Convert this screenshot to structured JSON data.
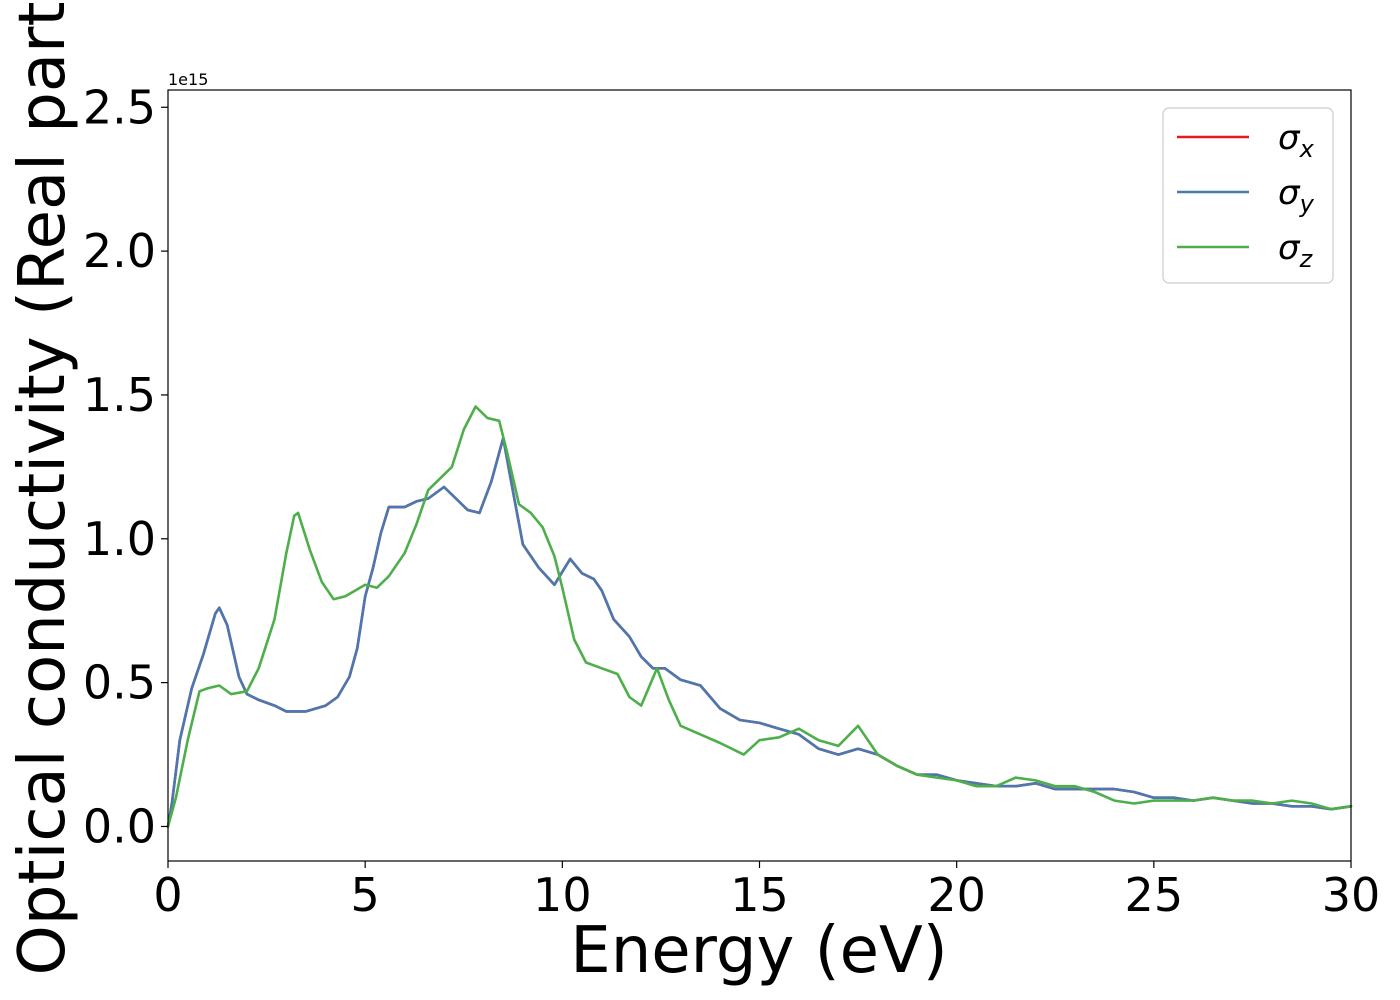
{
  "chart_data": {
    "type": "line",
    "xlabel": "Energy (eV)",
    "ylabel": "Optical conductivity (Real part)",
    "y_offset_label": "1e15",
    "xlim": [
      0,
      30
    ],
    "ylim": [
      -0.12,
      2.56
    ],
    "x_ticks": [
      0,
      5,
      10,
      15,
      20,
      25,
      30
    ],
    "x_tick_labels": [
      "0",
      "5",
      "10",
      "15",
      "20",
      "25",
      "30"
    ],
    "y_ticks": [
      0.0,
      0.5,
      1.0,
      1.5,
      2.0,
      2.5
    ],
    "y_tick_labels": [
      "0.0",
      "0.5",
      "1.0",
      "1.5",
      "2.0",
      "2.5"
    ],
    "grid": false,
    "legend_position": "top-right",
    "series": [
      {
        "name": "σ",
        "subscript": "x",
        "color": "#e41a1c",
        "points": [
          [
            0,
            0
          ],
          [
            0.1,
            0.08
          ],
          [
            0.3,
            0.3
          ],
          [
            0.6,
            0.48
          ],
          [
            0.9,
            0.6
          ],
          [
            1.2,
            0.74
          ],
          [
            1.3,
            0.76
          ],
          [
            1.5,
            0.7
          ],
          [
            1.8,
            0.52
          ],
          [
            2.0,
            0.46
          ],
          [
            2.3,
            0.44
          ],
          [
            2.7,
            0.42
          ],
          [
            3.0,
            0.4
          ],
          [
            3.5,
            0.4
          ],
          [
            4.0,
            0.42
          ],
          [
            4.3,
            0.45
          ],
          [
            4.6,
            0.52
          ],
          [
            4.8,
            0.62
          ],
          [
            5.0,
            0.8
          ],
          [
            5.2,
            0.9
          ],
          [
            5.4,
            1.02
          ],
          [
            5.6,
            1.11
          ],
          [
            6.0,
            1.11
          ],
          [
            6.3,
            1.13
          ],
          [
            6.6,
            1.14
          ],
          [
            7.0,
            1.18
          ],
          [
            7.3,
            1.14
          ],
          [
            7.6,
            1.1
          ],
          [
            7.9,
            1.09
          ],
          [
            8.2,
            1.2
          ],
          [
            8.5,
            1.35
          ],
          [
            8.7,
            1.2
          ],
          [
            9.0,
            0.98
          ],
          [
            9.4,
            0.9
          ],
          [
            9.8,
            0.84
          ],
          [
            10.2,
            0.93
          ],
          [
            10.5,
            0.88
          ],
          [
            10.8,
            0.86
          ],
          [
            11.0,
            0.82
          ],
          [
            11.3,
            0.72
          ],
          [
            11.7,
            0.66
          ],
          [
            12.0,
            0.59
          ],
          [
            12.3,
            0.55
          ],
          [
            12.6,
            0.55
          ],
          [
            13.0,
            0.51
          ],
          [
            13.5,
            0.49
          ],
          [
            14.0,
            0.41
          ],
          [
            14.5,
            0.37
          ],
          [
            15.0,
            0.36
          ],
          [
            15.5,
            0.34
          ],
          [
            16.0,
            0.32
          ],
          [
            16.5,
            0.27
          ],
          [
            17.0,
            0.25
          ],
          [
            17.5,
            0.27
          ],
          [
            18.0,
            0.25
          ],
          [
            18.5,
            0.21
          ],
          [
            19.0,
            0.18
          ],
          [
            19.5,
            0.18
          ],
          [
            20.0,
            0.16
          ],
          [
            20.5,
            0.15
          ],
          [
            21.0,
            0.14
          ],
          [
            21.5,
            0.14
          ],
          [
            22.0,
            0.15
          ],
          [
            22.5,
            0.13
          ],
          [
            23.0,
            0.13
          ],
          [
            24.0,
            0.13
          ],
          [
            24.5,
            0.12
          ],
          [
            25.0,
            0.1
          ],
          [
            25.5,
            0.1
          ],
          [
            26.0,
            0.09
          ],
          [
            26.5,
            0.1
          ],
          [
            27.0,
            0.09
          ],
          [
            27.5,
            0.08
          ],
          [
            28.0,
            0.08
          ],
          [
            28.5,
            0.07
          ],
          [
            29.0,
            0.07
          ],
          [
            29.5,
            0.06
          ],
          [
            30.0,
            0.07
          ]
        ]
      },
      {
        "name": "σ",
        "subscript": "y",
        "color": "#4a78b0",
        "points": [
          [
            0,
            0
          ],
          [
            0.1,
            0.08
          ],
          [
            0.3,
            0.3
          ],
          [
            0.6,
            0.48
          ],
          [
            0.9,
            0.6
          ],
          [
            1.2,
            0.74
          ],
          [
            1.3,
            0.76
          ],
          [
            1.5,
            0.7
          ],
          [
            1.8,
            0.52
          ],
          [
            2.0,
            0.46
          ],
          [
            2.3,
            0.44
          ],
          [
            2.7,
            0.42
          ],
          [
            3.0,
            0.4
          ],
          [
            3.5,
            0.4
          ],
          [
            4.0,
            0.42
          ],
          [
            4.3,
            0.45
          ],
          [
            4.6,
            0.52
          ],
          [
            4.8,
            0.62
          ],
          [
            5.0,
            0.8
          ],
          [
            5.2,
            0.9
          ],
          [
            5.4,
            1.02
          ],
          [
            5.6,
            1.11
          ],
          [
            6.0,
            1.11
          ],
          [
            6.3,
            1.13
          ],
          [
            6.6,
            1.14
          ],
          [
            7.0,
            1.18
          ],
          [
            7.3,
            1.14
          ],
          [
            7.6,
            1.1
          ],
          [
            7.9,
            1.09
          ],
          [
            8.2,
            1.2
          ],
          [
            8.5,
            1.35
          ],
          [
            8.7,
            1.2
          ],
          [
            9.0,
            0.98
          ],
          [
            9.4,
            0.9
          ],
          [
            9.8,
            0.84
          ],
          [
            10.2,
            0.93
          ],
          [
            10.5,
            0.88
          ],
          [
            10.8,
            0.86
          ],
          [
            11.0,
            0.82
          ],
          [
            11.3,
            0.72
          ],
          [
            11.7,
            0.66
          ],
          [
            12.0,
            0.59
          ],
          [
            12.3,
            0.55
          ],
          [
            12.6,
            0.55
          ],
          [
            13.0,
            0.51
          ],
          [
            13.5,
            0.49
          ],
          [
            14.0,
            0.41
          ],
          [
            14.5,
            0.37
          ],
          [
            15.0,
            0.36
          ],
          [
            15.5,
            0.34
          ],
          [
            16.0,
            0.32
          ],
          [
            16.5,
            0.27
          ],
          [
            17.0,
            0.25
          ],
          [
            17.5,
            0.27
          ],
          [
            18.0,
            0.25
          ],
          [
            18.5,
            0.21
          ],
          [
            19.0,
            0.18
          ],
          [
            19.5,
            0.18
          ],
          [
            20.0,
            0.16
          ],
          [
            20.5,
            0.15
          ],
          [
            21.0,
            0.14
          ],
          [
            21.5,
            0.14
          ],
          [
            22.0,
            0.15
          ],
          [
            22.5,
            0.13
          ],
          [
            23.0,
            0.13
          ],
          [
            24.0,
            0.13
          ],
          [
            24.5,
            0.12
          ],
          [
            25.0,
            0.1
          ],
          [
            25.5,
            0.1
          ],
          [
            26.0,
            0.09
          ],
          [
            26.5,
            0.1
          ],
          [
            27.0,
            0.09
          ],
          [
            27.5,
            0.08
          ],
          [
            28.0,
            0.08
          ],
          [
            28.5,
            0.07
          ],
          [
            29.0,
            0.07
          ],
          [
            29.5,
            0.06
          ],
          [
            30.0,
            0.07
          ]
        ]
      },
      {
        "name": "σ",
        "subscript": "z",
        "color": "#4daf4a",
        "points": [
          [
            0,
            0
          ],
          [
            0.2,
            0.1
          ],
          [
            0.5,
            0.3
          ],
          [
            0.8,
            0.47
          ],
          [
            1.0,
            0.48
          ],
          [
            1.3,
            0.49
          ],
          [
            1.6,
            0.46
          ],
          [
            2.0,
            0.47
          ],
          [
            2.3,
            0.55
          ],
          [
            2.7,
            0.72
          ],
          [
            3.0,
            0.95
          ],
          [
            3.2,
            1.08
          ],
          [
            3.3,
            1.09
          ],
          [
            3.6,
            0.96
          ],
          [
            3.9,
            0.85
          ],
          [
            4.2,
            0.79
          ],
          [
            4.5,
            0.8
          ],
          [
            5.0,
            0.84
          ],
          [
            5.3,
            0.83
          ],
          [
            5.6,
            0.87
          ],
          [
            6.0,
            0.95
          ],
          [
            6.3,
            1.05
          ],
          [
            6.6,
            1.17
          ],
          [
            6.9,
            1.21
          ],
          [
            7.2,
            1.25
          ],
          [
            7.5,
            1.38
          ],
          [
            7.8,
            1.46
          ],
          [
            8.1,
            1.42
          ],
          [
            8.4,
            1.41
          ],
          [
            8.6,
            1.3
          ],
          [
            8.9,
            1.12
          ],
          [
            9.2,
            1.09
          ],
          [
            9.5,
            1.04
          ],
          [
            9.8,
            0.94
          ],
          [
            10.0,
            0.83
          ],
          [
            10.3,
            0.65
          ],
          [
            10.6,
            0.57
          ],
          [
            11.0,
            0.55
          ],
          [
            11.4,
            0.53
          ],
          [
            11.7,
            0.45
          ],
          [
            12.0,
            0.42
          ],
          [
            12.4,
            0.55
          ],
          [
            12.7,
            0.44
          ],
          [
            13.0,
            0.35
          ],
          [
            13.5,
            0.32
          ],
          [
            14.0,
            0.29
          ],
          [
            14.6,
            0.25
          ],
          [
            15.0,
            0.3
          ],
          [
            15.5,
            0.31
          ],
          [
            16.0,
            0.34
          ],
          [
            16.5,
            0.3
          ],
          [
            17.0,
            0.28
          ],
          [
            17.5,
            0.35
          ],
          [
            18.0,
            0.25
          ],
          [
            18.5,
            0.21
          ],
          [
            19.0,
            0.18
          ],
          [
            19.5,
            0.17
          ],
          [
            20.0,
            0.16
          ],
          [
            20.5,
            0.14
          ],
          [
            21.0,
            0.14
          ],
          [
            21.5,
            0.17
          ],
          [
            22.0,
            0.16
          ],
          [
            22.5,
            0.14
          ],
          [
            23.0,
            0.14
          ],
          [
            23.5,
            0.12
          ],
          [
            24.0,
            0.09
          ],
          [
            24.5,
            0.08
          ],
          [
            25.0,
            0.09
          ],
          [
            25.5,
            0.09
          ],
          [
            26.0,
            0.09
          ],
          [
            26.5,
            0.1
          ],
          [
            27.0,
            0.09
          ],
          [
            27.5,
            0.09
          ],
          [
            28.0,
            0.08
          ],
          [
            28.5,
            0.09
          ],
          [
            29.0,
            0.08
          ],
          [
            29.5,
            0.06
          ],
          [
            30.0,
            0.07
          ]
        ]
      }
    ]
  }
}
